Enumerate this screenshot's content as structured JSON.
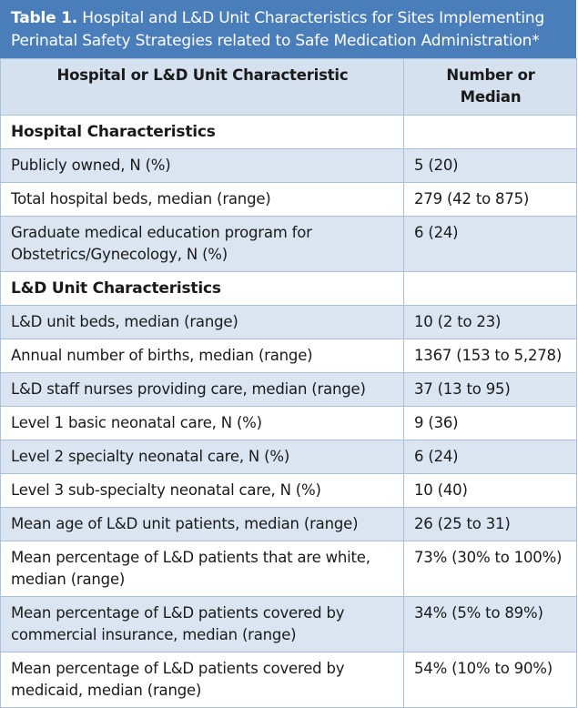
{
  "caption": {
    "label": "Table 1.",
    "text": " Hospital and L&D Unit Characteristics for Sites Implementing Perinatal Safety Strategies related to Safe Medication Administration*"
  },
  "header": {
    "col1": "Hospital or L&D Unit Characteristic",
    "col2": "Number or Median"
  },
  "rows": [
    {
      "type": "section",
      "label": "Hospital Characteristics",
      "value": ""
    },
    {
      "type": "row",
      "label": "Publicly owned, N (%)",
      "value": "5 (20)"
    },
    {
      "type": "row",
      "label": "Total hospital beds, median (range)",
      "value": "279 (42 to 875)"
    },
    {
      "type": "row",
      "label": "Graduate medical education program for Obstetrics/Gynecology, N (%)",
      "value": "6 (24)"
    },
    {
      "type": "section",
      "label": "L&D Unit Characteristics",
      "value": ""
    },
    {
      "type": "row",
      "label": "L&D unit beds, median (range)",
      "value": "10 (2 to 23)"
    },
    {
      "type": "row",
      "label": "Annual number of births, median (range)",
      "value": "1367 (153 to 5,278)"
    },
    {
      "type": "row",
      "label": "L&D staff nurses providing care, median (range)",
      "value": "37 (13 to 95)"
    },
    {
      "type": "row",
      "label": "Level 1 basic neonatal care, N (%)",
      "value": "9 (36)"
    },
    {
      "type": "row",
      "label": "Level 2 specialty neonatal care, N (%)",
      "value": "6 (24)"
    },
    {
      "type": "row",
      "label": "Level 3 sub-specialty neonatal care, N (%)",
      "value": "10 (40)"
    },
    {
      "type": "row",
      "label": "Mean age of L&D unit patients, median (range)",
      "value": "26 (25 to 31)"
    },
    {
      "type": "row",
      "label": "Mean percentage of L&D patients that are white, median (range)",
      "value": "73% (30% to 100%)"
    },
    {
      "type": "row",
      "label": "Mean percentage of L&D patients covered by commercial insurance, median (range)",
      "value": "34% (5% to 89%)"
    },
    {
      "type": "row",
      "label": "Mean percentage of L&D patients covered by medicaid, median (range)",
      "value": "54% (10% to 90%)"
    }
  ]
}
